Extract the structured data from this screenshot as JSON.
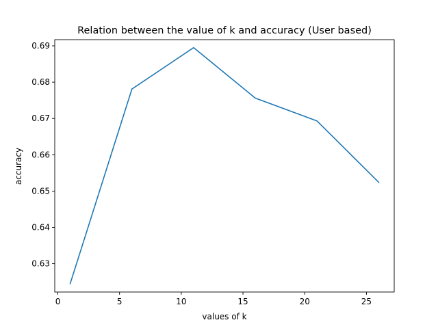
{
  "chart_data": {
    "type": "line",
    "title": "Relation between the value of k and accuracy (User based)",
    "xlabel": "values of k",
    "ylabel": "accuracy",
    "xlim": [
      -0.25,
      27.25
    ],
    "ylim": [
      0.6222,
      0.6917
    ],
    "xticks": [
      0,
      5,
      10,
      15,
      20,
      25
    ],
    "yticks": [
      0.63,
      0.64,
      0.65,
      0.66,
      0.67,
      0.68,
      0.69
    ],
    "grid": false,
    "legend": "none",
    "series": [
      {
        "color": "#1f77b4",
        "x": [
          1,
          6,
          11,
          16,
          21,
          26
        ],
        "values": [
          0.6245,
          0.6781,
          0.6895,
          0.6756,
          0.6693,
          0.6524
        ]
      }
    ]
  }
}
